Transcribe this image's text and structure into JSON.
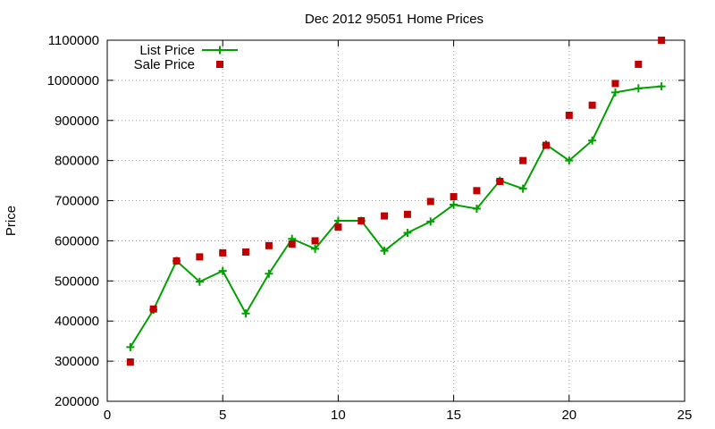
{
  "chart_data": {
    "type": "line",
    "title": "Dec 2012 95051 Home Prices",
    "xlabel": "",
    "ylabel": "Price",
    "xlim": [
      0,
      25
    ],
    "ylim": [
      200000,
      1100000
    ],
    "x_ticks": [
      0,
      5,
      10,
      15,
      20,
      25
    ],
    "y_ticks": [
      200000,
      300000,
      400000,
      500000,
      600000,
      700000,
      800000,
      900000,
      1000000,
      1100000
    ],
    "grid": true,
    "legend_position": "top-left",
    "series": [
      {
        "name": "List Price",
        "style": "lines+crosses",
        "color": "#00a000",
        "x": [
          1,
          2,
          3,
          4,
          5,
          6,
          7,
          8,
          9,
          10,
          11,
          12,
          13,
          14,
          15,
          16,
          17,
          18,
          19,
          20,
          21,
          22,
          23,
          24
        ],
        "y": [
          335000,
          428000,
          550000,
          498000,
          525000,
          419000,
          518000,
          605000,
          580000,
          650000,
          650000,
          575000,
          620000,
          648000,
          690000,
          680000,
          750000,
          730000,
          840000,
          800000,
          850000,
          970000,
          980000,
          985000
        ]
      },
      {
        "name": "Sale Price",
        "style": "squares",
        "color": "#c00000",
        "x": [
          1,
          2,
          3,
          4,
          5,
          6,
          7,
          8,
          9,
          10,
          11,
          12,
          13,
          14,
          15,
          16,
          17,
          18,
          19,
          20,
          21,
          22,
          23,
          24
        ],
        "y": [
          298000,
          430000,
          550000,
          560000,
          570000,
          572000,
          588000,
          592000,
          600000,
          634000,
          650000,
          662000,
          666000,
          698000,
          710000,
          725000,
          748000,
          800000,
          838000,
          913000,
          938000,
          992000,
          1040000,
          1100000
        ]
      }
    ]
  }
}
